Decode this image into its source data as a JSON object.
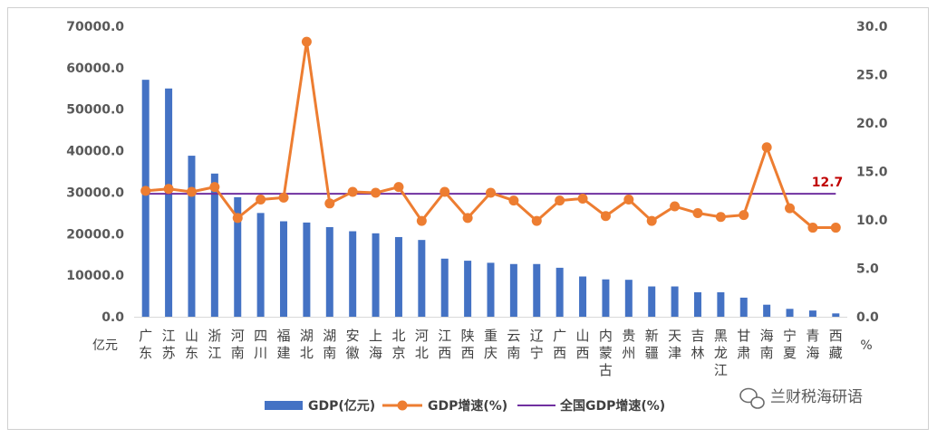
{
  "chart_data": {
    "type": "bar-line",
    "categories": [
      "广东",
      "江苏",
      "山东",
      "浙江",
      "河南",
      "四川",
      "福建",
      "湖北",
      "湖南",
      "安徽",
      "上海",
      "北京",
      "河北",
      "江西",
      "陕西",
      "重庆",
      "云南",
      "辽宁",
      "广西",
      "山西",
      "内蒙古",
      "贵州",
      "新疆",
      "天津",
      "吉林",
      "黑龙江",
      "甘肃",
      "海南",
      "宁夏",
      "青海",
      "西藏"
    ],
    "series": [
      {
        "name": "GDP(亿元)",
        "type": "bar",
        "axis": "left",
        "color": "#4472c4",
        "values": [
          57100,
          55000,
          38800,
          34500,
          28800,
          25000,
          23000,
          22700,
          21600,
          20600,
          20100,
          19200,
          18500,
          14000,
          13500,
          13000,
          12700,
          12700,
          11800,
          9700,
          9000,
          8900,
          7300,
          7300,
          5900,
          5900,
          4600,
          2900,
          1900,
          1500,
          800
        ]
      },
      {
        "name": "GDP增速(%)",
        "type": "line",
        "axis": "right",
        "color": "#ed7d31",
        "values": [
          13.0,
          13.2,
          12.9,
          13.4,
          10.2,
          12.1,
          12.3,
          28.4,
          11.7,
          12.9,
          12.8,
          13.4,
          9.9,
          12.9,
          10.2,
          12.8,
          12.0,
          9.9,
          12.0,
          12.2,
          10.4,
          12.1,
          9.9,
          11.4,
          10.7,
          10.3,
          10.5,
          17.5,
          11.2,
          9.2,
          9.2
        ]
      },
      {
        "name": "全国GDP增速(%)",
        "type": "reference",
        "axis": "right",
        "color": "#7030a0",
        "value": 12.7
      }
    ],
    "y_left": {
      "ylim": [
        0,
        70000
      ],
      "ticks": [
        "0.0",
        "10000.0",
        "20000.0",
        "30000.0",
        "40000.0",
        "50000.0",
        "60000.0",
        "70000.0"
      ],
      "unit": "亿元"
    },
    "y_right": {
      "ylim": [
        0,
        30
      ],
      "ticks": [
        "0.0",
        "5.0",
        "10.0",
        "15.0",
        "20.0",
        "25.0",
        "30.0"
      ],
      "unit": "%"
    },
    "annotation": "12.7",
    "legend_position": "bottom",
    "grid": false
  },
  "watermark": "兰财税海研语"
}
